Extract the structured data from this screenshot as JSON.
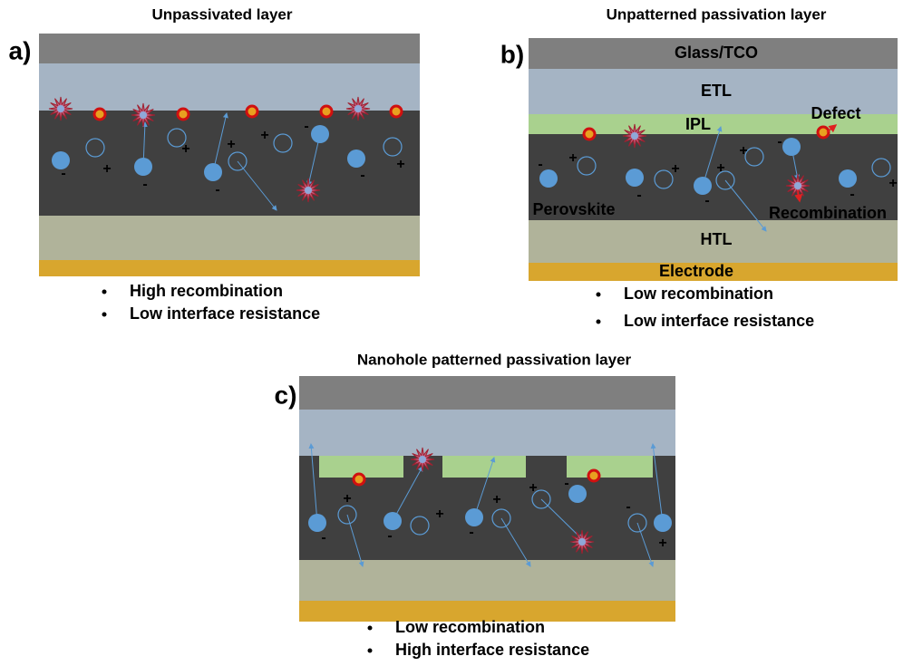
{
  "panels": [
    {
      "label": "a)",
      "title": "Unpassivated layer",
      "bullets": [
        "High recombination",
        "Low interface resistance"
      ],
      "signs": [
        "-",
        "-",
        "-",
        "-",
        "-",
        "+",
        "+",
        "+",
        "+",
        "+"
      ]
    },
    {
      "label": "b)",
      "title": "Unpatterned passivation layer",
      "bullets": [
        "Low recombination",
        "Low interface resistance"
      ],
      "signs": [
        "-",
        "-",
        "-",
        "-",
        "-",
        "+",
        "+",
        "+",
        "+",
        "+"
      ],
      "layers": {
        "glass": "Glass/TCO",
        "etl": "ETL",
        "ipl": "IPL",
        "perovskite": "Perovskite",
        "htl": "HTL",
        "electrode": "Electrode"
      },
      "annotations": {
        "defect": "Defect",
        "recombination": "Recombination"
      }
    },
    {
      "label": "c)",
      "title": "Nanohole patterned passivation layer",
      "bullets": [
        "Low recombination",
        "High interface resistance"
      ],
      "signs": [
        "-",
        "-",
        "-",
        "-",
        "-",
        "+",
        "+",
        "+",
        "+",
        "+"
      ]
    }
  ]
}
